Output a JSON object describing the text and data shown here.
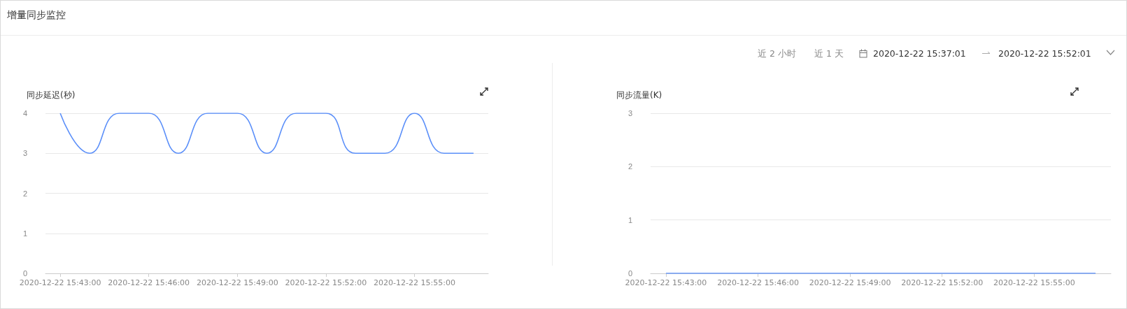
{
  "chart_data": [
    {
      "type": "other",
      "title": "增量同步监控",
      "annotations": [
        "近 2 小时",
        "近 1 天",
        "2020-12-22 15:37:01",
        "2020-12-22 15:52:01"
      ]
    },
    {
      "type": "line",
      "title": "同步延迟(秒)",
      "categories": [
        "2020-12-22 15:43:00",
        null,
        null,
        "2020-12-22 15:46:00",
        null,
        null,
        "2020-12-22 15:49:00",
        null,
        null,
        "2020-12-22 15:52:00",
        null,
        null,
        "2020-12-22 15:55:00",
        null,
        null
      ],
      "series": [
        {
          "color": "#5b8ff9",
          "values": [
            4,
            3,
            4,
            4,
            3,
            4,
            4,
            3,
            4,
            4,
            3,
            3,
            4,
            3,
            3
          ]
        }
      ],
      "ylim": [
        0,
        4
      ],
      "yticks": [
        0,
        1,
        2,
        3,
        4
      ],
      "grid": "y",
      "marker": "none"
    },
    {
      "type": "line",
      "title": "同步流量(K)",
      "categories": [
        "2020-12-22 15:43:00",
        null,
        null,
        "2020-12-22 15:46:00",
        null,
        null,
        "2020-12-22 15:49:00",
        null,
        null,
        "2020-12-22 15:52:00",
        null,
        null,
        "2020-12-22 15:55:00",
        null,
        null
      ],
      "series": [
        {
          "color": "#5b8ff9",
          "values": [
            0,
            0,
            0,
            0,
            0,
            0,
            0,
            0,
            0,
            0,
            0,
            0,
            0,
            0,
            0
          ]
        }
      ],
      "ylim": [
        0,
        3
      ],
      "yticks": [
        0,
        1,
        2,
        3
      ],
      "grid": "y",
      "marker": "none"
    }
  ]
}
